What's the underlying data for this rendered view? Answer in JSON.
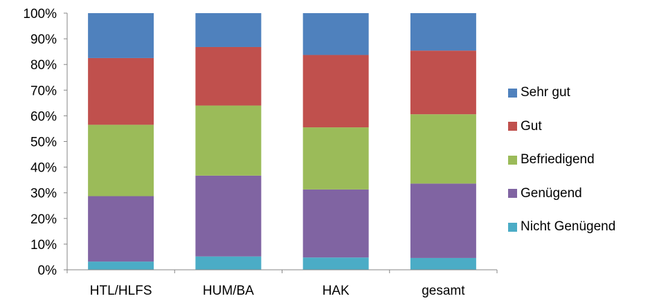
{
  "chart_data": {
    "type": "bar",
    "stacked": true,
    "percent": true,
    "categories": [
      "HTL/HLFS",
      "HUM/BA",
      "HAK",
      "gesamt"
    ],
    "series": [
      {
        "name": "Nicht Genügend",
        "color": "#4bacc6",
        "values": [
          3.2,
          5.2,
          4.8,
          4.6
        ]
      },
      {
        "name": "Genügend",
        "color": "#8064a2",
        "values": [
          25.5,
          31.5,
          26.5,
          29.0
        ]
      },
      {
        "name": "Befriedigend",
        "color": "#9bbb59",
        "values": [
          27.8,
          27.3,
          24.2,
          27.0
        ]
      },
      {
        "name": "Gut",
        "color": "#c0504d",
        "values": [
          26.0,
          22.8,
          28.2,
          24.8
        ]
      },
      {
        "name": "Sehr gut",
        "color": "#4f81bd",
        "values": [
          17.5,
          13.2,
          16.3,
          14.6
        ]
      }
    ],
    "yticks": [
      "0%",
      "10%",
      "20%",
      "30%",
      "40%",
      "50%",
      "60%",
      "70%",
      "80%",
      "90%",
      "100%"
    ],
    "ylim": [
      0,
      100
    ],
    "grid": false,
    "legend_position": "right"
  }
}
